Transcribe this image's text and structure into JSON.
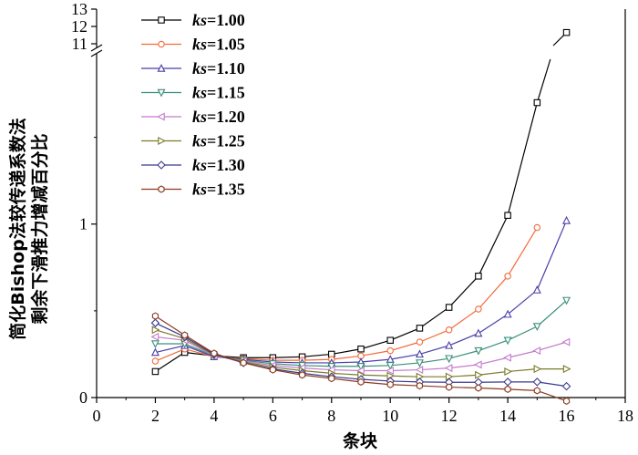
{
  "chart_data": {
    "type": "line",
    "xlabel": "条块",
    "ylabel_lines": [
      "简化Bishop法较传递系数法",
      "剩余下滑推力增减百分比"
    ],
    "xlim": [
      0,
      18
    ],
    "x_ticks": [
      0,
      2,
      4,
      6,
      8,
      10,
      12,
      14,
      16,
      18
    ],
    "y_ticks_lower": [
      "0",
      "1"
    ],
    "y_ticks_upper": [
      "11",
      "12",
      "13"
    ],
    "y_axis_break": {
      "lower_range": [
        0,
        1.95
      ],
      "upper_range": [
        11,
        13
      ]
    },
    "legend_position": "top-left",
    "x": [
      2,
      3,
      4,
      5,
      6,
      7,
      8,
      9,
      10,
      11,
      12,
      13,
      14,
      15,
      16
    ],
    "series": [
      {
        "name": "ks=1.00",
        "ks_prefix": "ks",
        "ks_value": "=1.00",
        "color": "#000000",
        "marker": "square",
        "values": [
          0.15,
          0.26,
          0.24,
          0.23,
          0.23,
          0.235,
          0.25,
          0.28,
          0.33,
          0.4,
          0.52,
          0.7,
          1.05,
          1.7,
          11.65
        ]
      },
      {
        "name": "ks=1.05",
        "ks_prefix": "ks",
        "ks_value": "=1.05",
        "color": "#f26b3a",
        "marker": "circle",
        "values": [
          0.21,
          0.28,
          0.235,
          0.225,
          0.215,
          0.215,
          0.22,
          0.24,
          0.27,
          0.32,
          0.39,
          0.51,
          0.7,
          0.98,
          null
        ]
      },
      {
        "name": "ks=1.10",
        "ks_prefix": "ks",
        "ks_value": "=1.10",
        "color": "#4a3fa8",
        "marker": "triangle-up",
        "values": [
          0.26,
          0.3,
          0.235,
          0.22,
          0.205,
          0.2,
          0.2,
          0.205,
          0.22,
          0.25,
          0.3,
          0.37,
          0.48,
          0.62,
          1.02
        ]
      },
      {
        "name": "ks=1.15",
        "ks_prefix": "ks",
        "ks_value": "=1.15",
        "color": "#3a8f7a",
        "marker": "triangle-down",
        "values": [
          0.31,
          0.31,
          0.24,
          0.215,
          0.195,
          0.185,
          0.18,
          0.18,
          0.185,
          0.2,
          0.225,
          0.27,
          0.33,
          0.41,
          0.56
        ]
      },
      {
        "name": "ks=1.20",
        "ks_prefix": "ks",
        "ks_value": "=1.20",
        "color": "#c37bcc",
        "marker": "triangle-left",
        "values": [
          0.35,
          0.33,
          0.24,
          0.21,
          0.185,
          0.17,
          0.16,
          0.155,
          0.155,
          0.16,
          0.17,
          0.19,
          0.23,
          0.27,
          0.32
        ]
      },
      {
        "name": "ks=1.25",
        "ks_prefix": "ks",
        "ks_value": "=1.25",
        "color": "#7d7a2a",
        "marker": "triangle-right",
        "values": [
          0.39,
          0.34,
          0.245,
          0.205,
          0.175,
          0.155,
          0.14,
          0.13,
          0.125,
          0.12,
          0.12,
          0.13,
          0.15,
          0.165,
          0.165
        ]
      },
      {
        "name": "ks=1.30",
        "ks_prefix": "ks",
        "ks_value": "=1.30",
        "color": "#3a3a8f",
        "marker": "diamond",
        "values": [
          0.43,
          0.35,
          0.25,
          0.2,
          0.165,
          0.14,
          0.12,
          0.105,
          0.095,
          0.09,
          0.088,
          0.088,
          0.09,
          0.09,
          0.065
        ]
      },
      {
        "name": "ks=1.35",
        "ks_prefix": "ks",
        "ks_value": "=1.35",
        "color": "#8b3a1f",
        "marker": "hexagon",
        "values": [
          0.47,
          0.36,
          0.255,
          0.2,
          0.16,
          0.13,
          0.11,
          0.09,
          0.075,
          0.068,
          0.06,
          0.055,
          0.048,
          0.04,
          -0.02
        ]
      }
    ]
  }
}
